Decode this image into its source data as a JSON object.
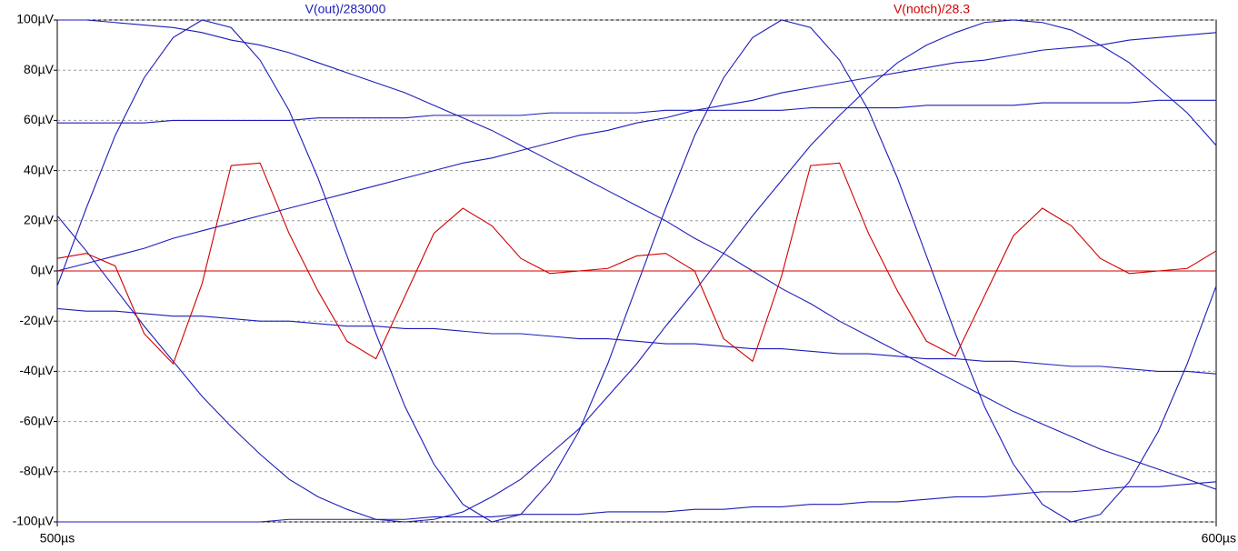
{
  "chart_data": {
    "type": "line",
    "x": [
      500,
      502.5,
      505,
      507.5,
      510,
      512.5,
      515,
      517.5,
      520,
      522.5,
      525,
      527.5,
      530,
      532.5,
      535,
      537.5,
      540,
      542.5,
      545,
      547.5,
      550,
      552.5,
      555,
      557.5,
      560,
      562.5,
      565,
      567.5,
      570,
      572.5,
      575,
      577.5,
      580,
      582.5,
      585,
      587.5,
      590,
      592.5,
      595,
      597.5,
      600
    ],
    "xlim": [
      500,
      600
    ],
    "xticks": [
      {
        "value": 500,
        "label": "500µs"
      },
      {
        "value": 600,
        "label": "600µs"
      }
    ],
    "ylim": [
      -100,
      100
    ],
    "yticks": [
      {
        "value": -100,
        "label": "-100µV"
      },
      {
        "value": -80,
        "label": "-80µV"
      },
      {
        "value": -60,
        "label": "-60µV"
      },
      {
        "value": -40,
        "label": "-40µV"
      },
      {
        "value": -20,
        "label": "-20µV"
      },
      {
        "value": 0,
        "label": "0µV"
      },
      {
        "value": 20,
        "label": "20µV"
      },
      {
        "value": 40,
        "label": "40µV"
      },
      {
        "value": 60,
        "label": "60µV"
      },
      {
        "value": 80,
        "label": "80µV"
      },
      {
        "value": 100,
        "label": "100µV"
      }
    ],
    "grid": true,
    "series": [
      {
        "name": "V(out)/283000",
        "color": "#1c1cb8",
        "values": [
          -6,
          25,
          54,
          77,
          93,
          100,
          97,
          84,
          64,
          37,
          6,
          -25,
          -54,
          -77,
          -93,
          -100,
          -97,
          -84,
          -64,
          -37,
          -6,
          25,
          54,
          77,
          93,
          100,
          97,
          84,
          64,
          37,
          6,
          -25,
          -54,
          -77,
          -93,
          -100,
          -97,
          -84,
          -64,
          -37,
          -6
        ]
      },
      {
        "color": "#1c1cb8",
        "values": [
          22,
          8,
          -7,
          -22,
          -36,
          -50,
          -62,
          -73,
          -83,
          -90,
          -95,
          -99,
          -100,
          -99,
          -96,
          -90,
          -83,
          -73,
          -63,
          -50,
          -37,
          -22,
          -8,
          7,
          22,
          36,
          50,
          62,
          73,
          83,
          90,
          95,
          99,
          100,
          99,
          96,
          90,
          83,
          73,
          63,
          50
        ]
      },
      {
        "color": "#1c1cb8",
        "values": [
          100,
          100,
          99,
          98,
          97,
          95,
          92,
          90,
          87,
          83,
          79,
          75,
          71,
          66,
          61,
          56,
          50,
          44,
          38,
          32,
          26,
          20,
          13,
          7,
          0,
          -7,
          -13,
          -20,
          -26,
          -32,
          -38,
          -44,
          -50,
          -56,
          -61,
          -66,
          -71,
          -75,
          -79,
          -83,
          -87
        ]
      },
      {
        "color": "#1c1cb8",
        "values": [
          0,
          3,
          6,
          9,
          13,
          16,
          19,
          22,
          25,
          28,
          31,
          34,
          37,
          40,
          43,
          45,
          48,
          51,
          54,
          56,
          59,
          61,
          64,
          66,
          68,
          71,
          73,
          75,
          77,
          79,
          81,
          83,
          84,
          86,
          88,
          89,
          90,
          92,
          93,
          94,
          95
        ]
      },
      {
        "color": "#1c1cb8",
        "values": [
          59,
          59,
          59,
          59,
          60,
          60,
          60,
          60,
          60,
          61,
          61,
          61,
          61,
          62,
          62,
          62,
          62,
          63,
          63,
          63,
          63,
          64,
          64,
          64,
          64,
          64,
          65,
          65,
          65,
          65,
          66,
          66,
          66,
          66,
          67,
          67,
          67,
          67,
          68,
          68,
          68
        ]
      },
      {
        "color": "#1c1cb8",
        "values": [
          -15,
          -16,
          -16,
          -17,
          -18,
          -18,
          -19,
          -20,
          -20,
          -21,
          -22,
          -22,
          -23,
          -23,
          -24,
          -25,
          -25,
          -26,
          -27,
          -27,
          -28,
          -29,
          -29,
          -30,
          -31,
          -31,
          -32,
          -33,
          -33,
          -34,
          -35,
          -35,
          -36,
          -36,
          -37,
          -38,
          -38,
          -39,
          -40,
          -40,
          -41
        ]
      },
      {
        "color": "#1c1cb8",
        "values": [
          -100,
          -100,
          -100,
          -100,
          -100,
          -100,
          -100,
          -100,
          -99,
          -99,
          -99,
          -99,
          -99,
          -98,
          -98,
          -98,
          -97,
          -97,
          -97,
          -96,
          -96,
          -96,
          -95,
          -95,
          -94,
          -94,
          -93,
          -93,
          -92,
          -92,
          -91,
          -90,
          -90,
          -89,
          -88,
          -88,
          -87,
          -86,
          -86,
          -85,
          -84
        ]
      },
      {
        "name": "V(notch)/28.3",
        "color": "#d00000",
        "values": [
          5,
          7,
          2,
          -25,
          -37,
          -5,
          42,
          43,
          15,
          -8,
          -28,
          -35,
          -10,
          15,
          25,
          18,
          5,
          -1,
          0,
          1,
          6,
          7,
          0,
          -27,
          -36,
          -2,
          42,
          43,
          15,
          -8,
          -28,
          -34,
          -10,
          14,
          25,
          18,
          5,
          -1,
          0,
          1,
          8
        ]
      },
      {
        "color": "#d00000",
        "values": [
          0,
          0,
          0,
          0,
          0,
          0,
          0,
          0,
          0,
          0,
          0,
          0,
          0,
          0,
          0,
          0,
          0,
          0,
          0,
          0,
          0,
          0,
          0,
          0,
          0,
          0,
          0,
          0,
          0,
          0,
          0,
          0,
          0,
          0,
          0,
          0,
          0,
          0,
          0,
          0,
          0
        ]
      }
    ]
  }
}
